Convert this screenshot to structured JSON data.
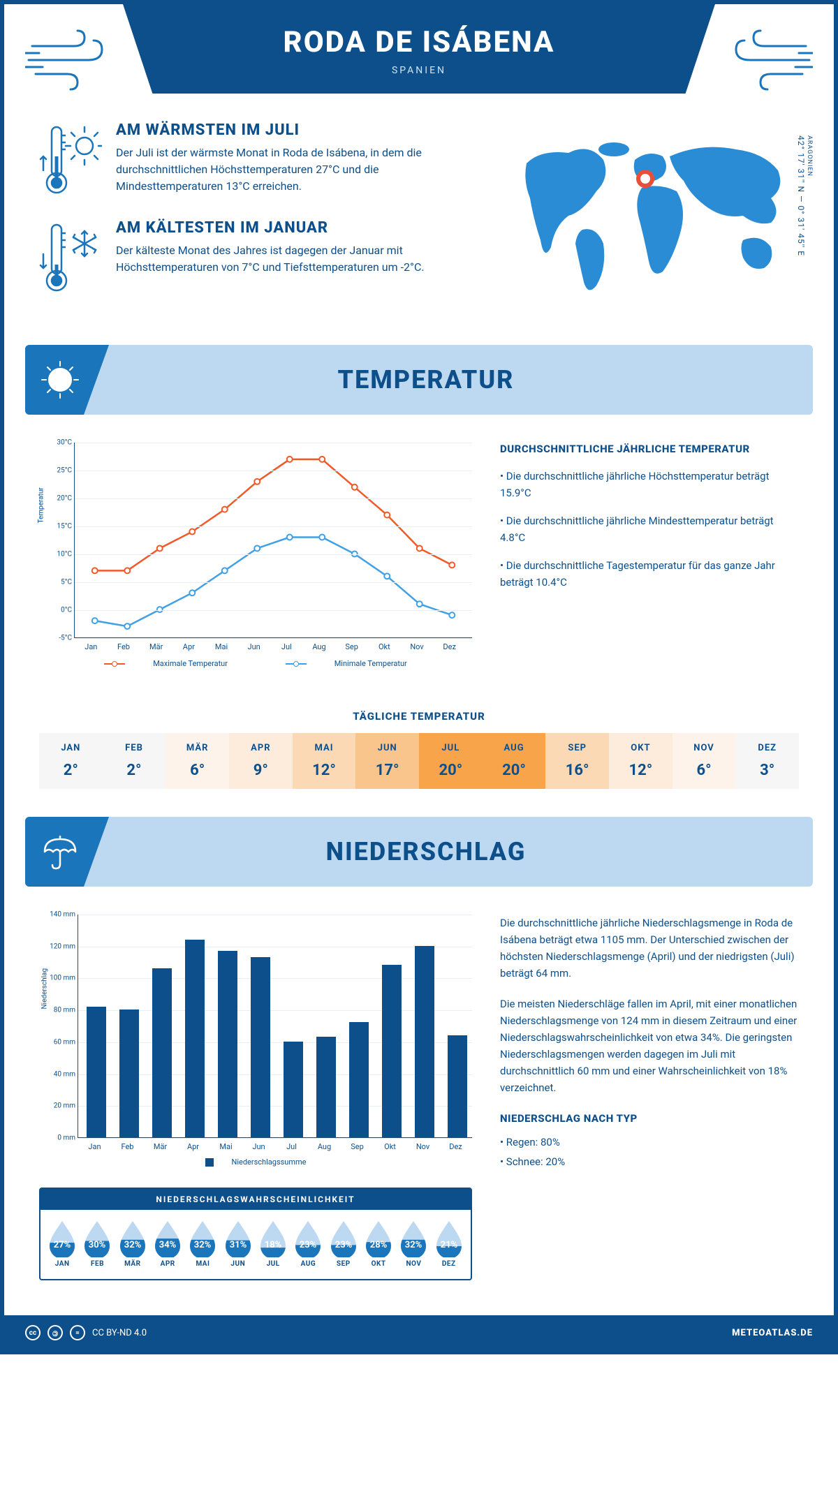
{
  "header": {
    "title": "RODA DE ISÁBENA",
    "subtitle": "SPANIEN"
  },
  "coords": {
    "region": "ARAGONIEN",
    "lat": "42° 17' 31'' N",
    "lon": "0° 31' 45'' E"
  },
  "facts": {
    "warm": {
      "title": "AM WÄRMSTEN IM JULI",
      "text": "Der Juli ist der wärmste Monat in Roda de Isábena, in dem die durchschnittlichen Höchsttemperaturen 27°C und die Mindesttemperaturen 13°C erreichen."
    },
    "cold": {
      "title": "AM KÄLTESTEN IM JANUAR",
      "text": "Der kälteste Monat des Jahres ist dagegen der Januar mit Höchsttemperaturen von 7°C und Tiefsttemperaturen um -2°C."
    }
  },
  "sections": {
    "temp": "TEMPERATUR",
    "precip": "NIEDERSCHLAG"
  },
  "temp_chart": {
    "type": "line",
    "ylabel": "Temperatur",
    "ymin": -5,
    "ymax": 30,
    "ystep": 5,
    "yunit": "°C",
    "months": [
      "Jan",
      "Feb",
      "Mär",
      "Apr",
      "Mai",
      "Jun",
      "Jul",
      "Aug",
      "Sep",
      "Okt",
      "Nov",
      "Dez"
    ],
    "max_series": {
      "label": "Maximale Temperatur",
      "color": "#f05a28",
      "values": [
        7,
        7,
        11,
        14,
        18,
        23,
        27,
        27,
        22,
        17,
        11,
        8
      ]
    },
    "min_series": {
      "label": "Minimale Temperatur",
      "color": "#3fa0e6",
      "values": [
        -2,
        -3,
        0,
        3,
        7,
        11,
        13,
        13,
        10,
        6,
        1,
        -1
      ]
    }
  },
  "temp_text": {
    "title": "DURCHSCHNITTLICHE JÄHRLICHE TEMPERATUR",
    "b1": "• Die durchschnittliche jährliche Höchsttemperatur beträgt 15.9°C",
    "b2": "• Die durchschnittliche jährliche Mindesttemperatur beträgt 4.8°C",
    "b3": "• Die durchschnittliche Tagestemperatur für das ganze Jahr beträgt 10.4°C"
  },
  "daily": {
    "title": "TÄGLICHE TEMPERATUR",
    "months": [
      "JAN",
      "FEB",
      "MÄR",
      "APR",
      "MAI",
      "JUN",
      "JUL",
      "AUG",
      "SEP",
      "OKT",
      "NOV",
      "DEZ"
    ],
    "values": [
      "2°",
      "2°",
      "6°",
      "9°",
      "12°",
      "17°",
      "20°",
      "20°",
      "16°",
      "12°",
      "6°",
      "3°"
    ],
    "colors": [
      "#f6f6f6",
      "#f6f6f6",
      "#fdf3ea",
      "#fdecdc",
      "#fbd9b4",
      "#f9c58d",
      "#f7a44b",
      "#f7a44b",
      "#fbd9b4",
      "#fdecdc",
      "#fdf3ea",
      "#f6f6f6"
    ]
  },
  "precip_chart": {
    "type": "bar",
    "ylabel": "Niederschlag",
    "ymin": 0,
    "ymax": 140,
    "ystep": 20,
    "yunit": " mm",
    "months": [
      "Jan",
      "Feb",
      "Mär",
      "Apr",
      "Mai",
      "Jun",
      "Jul",
      "Aug",
      "Sep",
      "Okt",
      "Nov",
      "Dez"
    ],
    "values": [
      82,
      80,
      106,
      124,
      117,
      113,
      60,
      63,
      72,
      108,
      120,
      64
    ],
    "bar_color": "#0d4f8b",
    "legend": "Niederschlagssumme"
  },
  "precip_text": {
    "p1": "Die durchschnittliche jährliche Niederschlagsmenge in Roda de Isábena beträgt etwa 1105 mm. Der Unterschied zwischen der höchsten Niederschlagsmenge (April) und der niedrigsten (Juli) beträgt 64 mm.",
    "p2": "Die meisten Niederschläge fallen im April, mit einer monatlichen Niederschlagsmenge von 124 mm in diesem Zeitraum und einer Niederschlagswahrscheinlichkeit von etwa 34%. Die geringsten Niederschlagsmengen werden dagegen im Juli mit durchschnittlich 60 mm und einer Wahrscheinlichkeit von 18% verzeichnet.",
    "type_title": "NIEDERSCHLAG NACH TYP",
    "type_b1": "• Regen: 80%",
    "type_b2": "• Schnee: 20%"
  },
  "probability": {
    "title": "NIEDERSCHLAGSWAHRSCHEINLICHKEIT",
    "months": [
      "JAN",
      "FEB",
      "MÄR",
      "APR",
      "MAI",
      "JUN",
      "JUL",
      "AUG",
      "SEP",
      "OKT",
      "NOV",
      "DEZ"
    ],
    "values": [
      "27%",
      "30%",
      "32%",
      "34%",
      "32%",
      "31%",
      "18%",
      "23%",
      "23%",
      "28%",
      "32%",
      "21%"
    ],
    "fill_color": "#1b75bb",
    "empty_color": "#bdd8f1",
    "fills": [
      0.5,
      0.56,
      0.6,
      0.64,
      0.6,
      0.58,
      0.33,
      0.42,
      0.42,
      0.52,
      0.6,
      0.38
    ]
  },
  "footer": {
    "license": "CC BY-ND 4.0",
    "brand": "METEOATLAS.DE"
  },
  "colors": {
    "primary": "#0d4f8b",
    "banner_bg": "#bdd8f1",
    "accent": "#1b75bb",
    "orange": "#f05a28",
    "blueline": "#3fa0e6",
    "marker": "#e94e3a"
  }
}
